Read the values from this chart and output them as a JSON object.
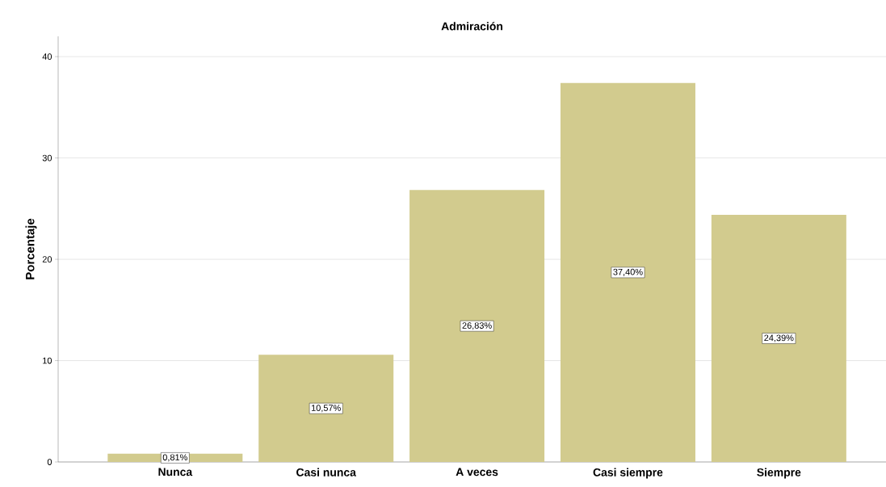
{
  "chart_data": {
    "type": "bar",
    "title": "Admiración",
    "ylabel": "Porcentaje",
    "categories": [
      "Nunca",
      "Casi nunca",
      "A veces",
      "Casi siempre",
      "Siempre"
    ],
    "values": [
      0.81,
      10.57,
      26.83,
      37.4,
      24.39
    ],
    "value_labels": [
      "0,81%",
      "10,57%",
      "26,83%",
      "37,40%",
      "24,39%"
    ],
    "color": "#d2cb8e",
    "ylim": [
      0,
      42
    ],
    "yticks": [
      0,
      10,
      20,
      30,
      40
    ],
    "grid": "y"
  }
}
